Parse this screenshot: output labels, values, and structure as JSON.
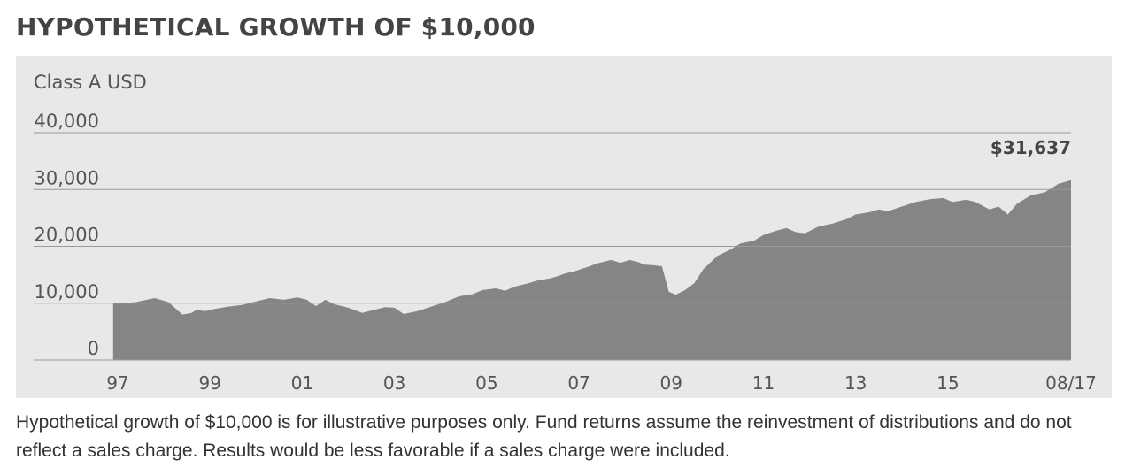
{
  "title": "HYPOTHETICAL GROWTH OF $10,000",
  "footnote": "Hypothetical growth of $10,000 is for illustrative purposes only. Fund returns assume the reinvestment of distributions and do not reflect a sales charge. Results would be less favorable if a sales charge were included.",
  "colors": {
    "panel": "#e8e8e8",
    "area": "#858585",
    "gridline": "#9a9a9a",
    "text": "#444444"
  },
  "chart_data": {
    "type": "area",
    "series_label": "Class A USD",
    "end_value_label": "$31,637",
    "ylim": [
      0,
      40000
    ],
    "y_ticks": [
      0,
      10000,
      20000,
      30000,
      40000
    ],
    "y_tick_labels": [
      "0",
      "10,000",
      "20,000",
      "30,000",
      "40,000"
    ],
    "xlim": [
      1996.9,
      2017.67
    ],
    "x_ticks": [
      1997,
      1999,
      2001,
      2003,
      2005,
      2007,
      2009,
      2011,
      2013,
      2015,
      2017.67
    ],
    "x_tick_labels": [
      "97",
      "99",
      "01",
      "03",
      "05",
      "07",
      "09",
      "11",
      "13",
      "15",
      "08/17"
    ],
    "grid": true,
    "x": [
      1996.9,
      1997.1,
      1997.4,
      1997.8,
      1998.1,
      1998.4,
      1998.6,
      1998.7,
      1998.9,
      1999.1,
      1999.4,
      1999.7,
      2000.0,
      2000.3,
      2000.6,
      2000.9,
      2001.1,
      2001.3,
      2001.5,
      2001.7,
      2002.0,
      2002.3,
      2002.6,
      2002.8,
      2003.0,
      2003.2,
      2003.5,
      2003.8,
      2004.1,
      2004.4,
      2004.7,
      2004.9,
      2005.2,
      2005.4,
      2005.6,
      2005.9,
      2006.1,
      2006.4,
      2006.7,
      2006.9,
      2007.2,
      2007.4,
      2007.7,
      2007.9,
      2008.1,
      2008.3,
      2008.4,
      2008.6,
      2008.8,
      2008.95,
      2009.1,
      2009.3,
      2009.5,
      2009.7,
      2010.0,
      2010.3,
      2010.5,
      2010.8,
      2011.0,
      2011.3,
      2011.5,
      2011.7,
      2011.9,
      2012.2,
      2012.5,
      2012.8,
      2013.0,
      2013.3,
      2013.5,
      2013.7,
      2014.0,
      2014.3,
      2014.6,
      2014.9,
      2015.1,
      2015.4,
      2015.6,
      2015.9,
      2016.1,
      2016.3,
      2016.5,
      2016.8,
      2017.1,
      2017.4,
      2017.67
    ],
    "values": [
      10000,
      10000,
      10200,
      10900,
      10200,
      8000,
      8300,
      8800,
      8600,
      9000,
      9400,
      9700,
      10300,
      10900,
      10600,
      11000,
      10600,
      9500,
      10600,
      9800,
      9200,
      8300,
      8900,
      9300,
      9200,
      8100,
      8600,
      9400,
      10200,
      11200,
      11600,
      12300,
      12600,
      12200,
      12900,
      13500,
      14000,
      14400,
      15200,
      15600,
      16400,
      17000,
      17600,
      17100,
      17600,
      17200,
      16800,
      16700,
      16500,
      12000,
      11500,
      12300,
      13500,
      16000,
      18300,
      19500,
      20500,
      21000,
      22000,
      22800,
      23200,
      22500,
      22300,
      23500,
      24000,
      24800,
      25600,
      26000,
      26500,
      26200,
      27000,
      27800,
      28300,
      28500,
      27800,
      28200,
      27800,
      26500,
      27000,
      25600,
      27500,
      29000,
      29500,
      31000,
      31637
    ]
  }
}
